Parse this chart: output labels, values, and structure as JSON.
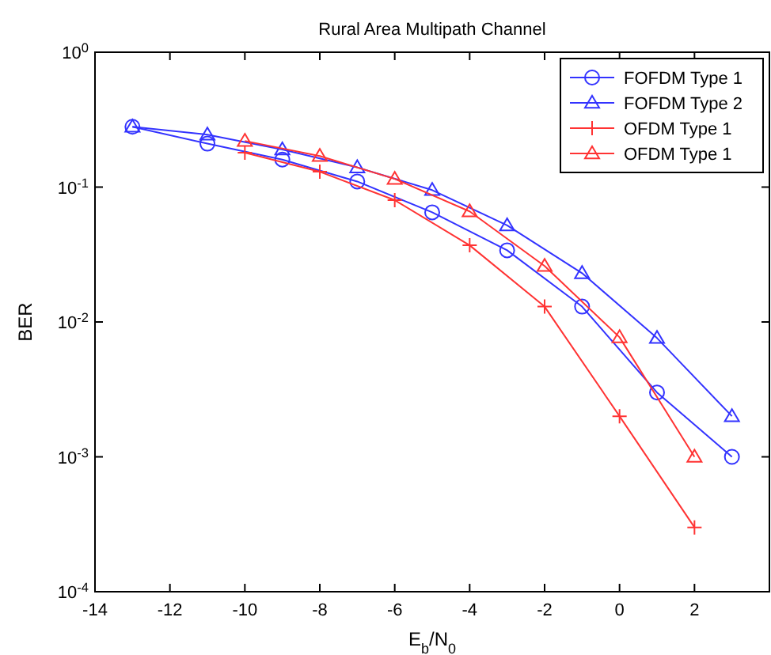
{
  "chart_data": {
    "type": "line",
    "title": "Rural Area Multipath Channel",
    "xlabel": "E$_{b}$/N$_{0}$",
    "ylabel": "BER",
    "xlim": [
      -14,
      4
    ],
    "xticks": [
      -14,
      -12,
      -10,
      -8,
      -6,
      -4,
      -2,
      0,
      2
    ],
    "ylim": [
      0.0001,
      1
    ],
    "yticks": [
      {
        "value": 0.0001,
        "label": "10$^{-4}$"
      },
      {
        "value": 0.001,
        "label": "10$^{-3}$"
      },
      {
        "value": 0.01,
        "label": "10$^{-2}$"
      },
      {
        "value": 0.1,
        "label": "10$^{-1}$"
      },
      {
        "value": 1,
        "label": "10$^{0}$"
      }
    ],
    "log": "y",
    "grid": false,
    "legend": "top right",
    "line_style": "solid",
    "series": [
      {
        "name": "FOFDM Type 1",
        "color": "#3333ff",
        "marker": "circle",
        "x": [
          -13,
          -11,
          -9,
          -7,
          -5,
          -3,
          -1,
          1,
          3
        ],
        "values": [
          0.28,
          0.21,
          0.16,
          0.11,
          0.065,
          0.034,
          0.013,
          0.003,
          0.001
        ]
      },
      {
        "name": "FOFDM Type 2",
        "color": "#3333ff",
        "marker": "triangle",
        "x": [
          -13,
          -11,
          -9,
          -7,
          -5,
          -3,
          -1,
          1,
          3
        ],
        "values": [
          0.28,
          0.245,
          0.19,
          0.14,
          0.095,
          0.052,
          0.023,
          0.0076,
          0.002
        ]
      },
      {
        "name": "OFDM Type 1",
        "color": "#ff3333",
        "marker": "cross",
        "x": [
          -10,
          -8,
          -6,
          -4,
          -2,
          0,
          2
        ],
        "values": [
          0.18,
          0.13,
          0.08,
          0.037,
          0.013,
          0.002,
          0.0003
        ]
      },
      {
        "name": "OFDM Type 1",
        "color": "#ff3333",
        "marker": "triangle",
        "x": [
          -10,
          -8,
          -6,
          -4,
          -2,
          0,
          2
        ],
        "values": [
          0.22,
          0.17,
          0.115,
          0.066,
          0.026,
          0.0077,
          0.001
        ]
      }
    ]
  }
}
